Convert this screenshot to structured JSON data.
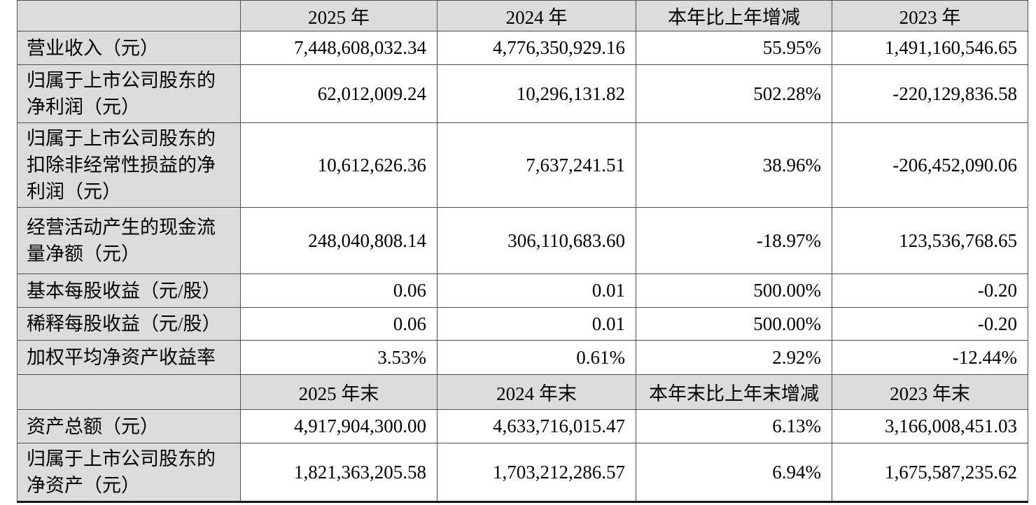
{
  "colors": {
    "header_bg": "#dcdcdc",
    "cell_bg": "#ffffff",
    "border": "#4f4f4f",
    "text": "#000000"
  },
  "table": {
    "sections": [
      {
        "headers": [
          "",
          "2025 年",
          "2024 年",
          "本年比上年增减",
          "2023 年"
        ],
        "rows": [
          {
            "label": "营业收入（元）",
            "values": [
              "7,448,608,032.34",
              "4,776,350,929.16",
              "55.95%",
              "1,491,160,546.65"
            ]
          },
          {
            "label": "归属于上市公司股东的\n净利润（元）",
            "values": [
              "62,012,009.24",
              "10,296,131.82",
              "502.28%",
              "-220,129,836.58"
            ]
          },
          {
            "label": "归属于上市公司股东的\n扣除非经常性损益的净\n利润（元）",
            "values": [
              "10,612,626.36",
              "7,637,241.51",
              "38.96%",
              "-206,452,090.06"
            ]
          },
          {
            "label": "经营活动产生的现金流\n量净额（元）",
            "values": [
              "248,040,808.14",
              "306,110,683.60",
              "-18.97%",
              "123,536,768.65"
            ]
          },
          {
            "label": "基本每股收益（元/股）",
            "values": [
              "0.06",
              "0.01",
              "500.00%",
              "-0.20"
            ]
          },
          {
            "label": "稀释每股收益（元/股）",
            "values": [
              "0.06",
              "0.01",
              "500.00%",
              "-0.20"
            ]
          },
          {
            "label": "加权平均净资产收益率",
            "values": [
              "3.53%",
              "0.61%",
              "2.92%",
              "-12.44%"
            ]
          }
        ]
      },
      {
        "headers": [
          "",
          "2025 年末",
          "2024 年末",
          "本年末比上年末增减",
          "2023 年末"
        ],
        "rows": [
          {
            "label": "资产总额（元）",
            "values": [
              "4,917,904,300.00",
              "4,633,716,015.47",
              "6.13%",
              "3,166,008,451.03"
            ]
          },
          {
            "label": "归属于上市公司股东的\n净资产（元）",
            "values": [
              "1,821,363,205.58",
              "1,703,212,286.57",
              "6.94%",
              "1,675,587,235.62"
            ]
          }
        ]
      }
    ]
  }
}
